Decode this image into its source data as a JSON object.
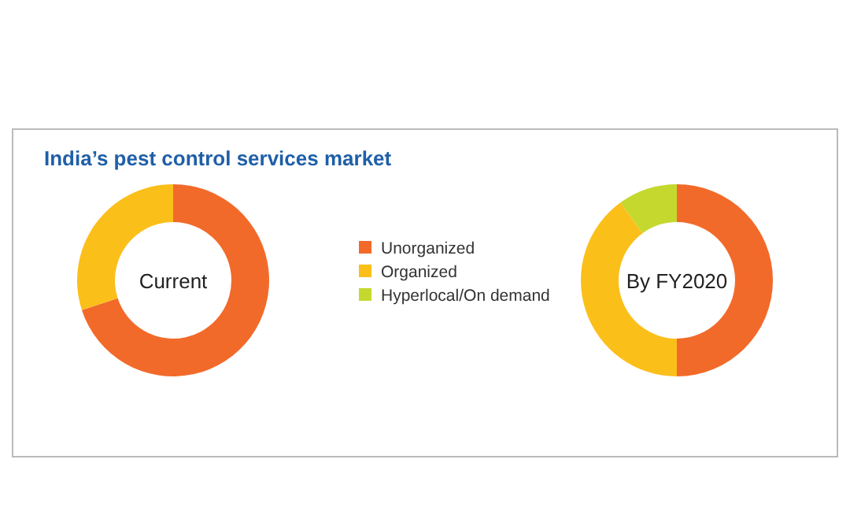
{
  "chart_data": {
    "type": "donut",
    "title": "India’s pest control services market",
    "categories": [
      "Unorganized",
      "Organized",
      "Hyperlocal/On demand"
    ],
    "colors": [
      "#f26a2a",
      "#fbbf1a",
      "#c5d82e"
    ],
    "legend": "right",
    "series": [
      {
        "name": "Current",
        "values": [
          70,
          30,
          0
        ]
      },
      {
        "name": "By FY2020",
        "values": [
          50,
          40,
          10
        ]
      }
    ]
  }
}
